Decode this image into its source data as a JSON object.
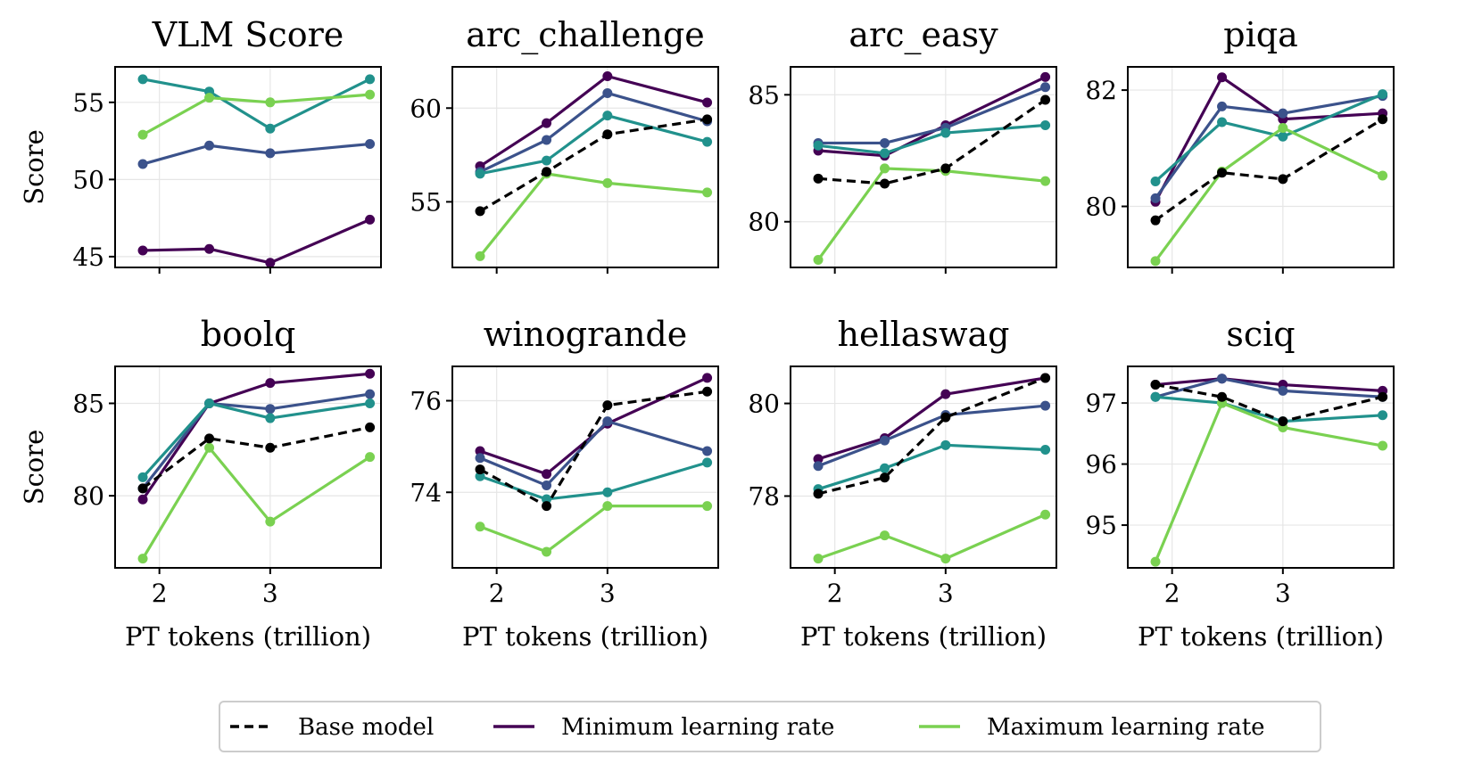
{
  "chart_data": {
    "type": "line",
    "layout": "2x4 grid of line subplots sharing x axis",
    "series_styles": [
      {
        "key": "base",
        "name": "Base model",
        "color": "#000000",
        "dashed": true
      },
      {
        "key": "s1",
        "name": "Minimum learning rate",
        "color": "#440154",
        "dashed": false
      },
      {
        "key": "s2",
        "name": "",
        "color": "#3b528b",
        "dashed": false
      },
      {
        "key": "s3",
        "name": "",
        "color": "#21918c",
        "dashed": false
      },
      {
        "key": "s4",
        "name": "Maximum learning rate",
        "color": "#7ad151",
        "dashed": false
      }
    ],
    "legend": {
      "placement": "bottom-center",
      "entries": [
        {
          "label": "Base model",
          "series": "base"
        },
        {
          "label": "Minimum learning rate",
          "series": "s1"
        },
        {
          "label": "Maximum learning rate",
          "series": "s4"
        }
      ]
    },
    "x": [
      1.85,
      2.45,
      3.0,
      3.9
    ],
    "xlim": [
      1.6,
      4.0
    ],
    "xticks": [
      2,
      3
    ],
    "xlabel": "PT tokens (trillion)",
    "ylabel": "Score",
    "grid": true,
    "panels": [
      {
        "title": "VLM Score",
        "ylim": [
          44.3,
          57.3
        ],
        "yticks": [
          45,
          50,
          55
        ],
        "ylabel": "Score",
        "show_xticklabels": false,
        "series": {
          "s1": [
            45.4,
            45.5,
            44.6,
            47.4
          ],
          "s2": [
            51.0,
            52.2,
            51.7,
            52.3
          ],
          "s3": [
            56.5,
            55.7,
            53.3,
            56.5
          ],
          "s4": [
            52.9,
            55.3,
            55.0,
            55.5
          ]
        }
      },
      {
        "title": "arc_challenge",
        "ylim": [
          51.5,
          62.2
        ],
        "yticks": [
          55,
          60
        ],
        "ylabel": "",
        "show_xticklabels": false,
        "series": {
          "base": [
            54.5,
            56.6,
            58.6,
            59.4
          ],
          "s1": [
            56.9,
            59.2,
            61.7,
            60.3
          ],
          "s2": [
            56.6,
            58.3,
            60.8,
            59.3
          ],
          "s3": [
            56.5,
            57.2,
            59.6,
            58.2
          ],
          "s4": [
            52.1,
            56.5,
            56.0,
            55.5
          ]
        }
      },
      {
        "title": "arc_easy",
        "ylim": [
          78.2,
          86.1
        ],
        "yticks": [
          80,
          85
        ],
        "ylabel": "",
        "show_xticklabels": false,
        "series": {
          "base": [
            81.7,
            81.5,
            82.1,
            84.8
          ],
          "s1": [
            82.8,
            82.6,
            83.8,
            85.7
          ],
          "s2": [
            83.1,
            83.1,
            83.7,
            85.3
          ],
          "s3": [
            83.0,
            82.7,
            83.5,
            83.8
          ],
          "s4": [
            78.5,
            82.1,
            82.0,
            81.6
          ]
        }
      },
      {
        "title": "piqa",
        "ylim": [
          78.95,
          82.4
        ],
        "yticks": [
          80,
          82
        ],
        "ylabel": "",
        "show_xticklabels": false,
        "series": {
          "base": [
            79.76,
            80.58,
            80.47,
            81.5
          ],
          "s1": [
            80.08,
            82.22,
            81.5,
            81.6
          ],
          "s2": [
            80.14,
            81.72,
            81.6,
            81.9
          ],
          "s3": [
            80.43,
            81.45,
            81.2,
            81.93
          ],
          "s4": [
            79.06,
            80.6,
            81.35,
            80.53
          ]
        }
      },
      {
        "title": "boolq",
        "ylim": [
          76.1,
          87.0
        ],
        "yticks": [
          80,
          85
        ],
        "ylabel": "Score",
        "show_xticklabels": true,
        "series": {
          "base": [
            80.4,
            83.1,
            82.6,
            83.7
          ],
          "s1": [
            79.8,
            85.0,
            86.1,
            86.6
          ],
          "s2": [
            80.4,
            85.0,
            84.7,
            85.5
          ],
          "s3": [
            81.0,
            85.0,
            84.2,
            85.0
          ],
          "s4": [
            76.6,
            82.6,
            78.6,
            82.1
          ]
        }
      },
      {
        "title": "winogrande",
        "ylim": [
          72.35,
          76.75
        ],
        "yticks": [
          74,
          76
        ],
        "ylabel": "",
        "show_xticklabels": true,
        "series": {
          "base": [
            74.5,
            73.7,
            75.9,
            76.2
          ],
          "s1": [
            74.9,
            74.4,
            75.5,
            76.5
          ],
          "s2": [
            74.75,
            74.15,
            75.55,
            74.9
          ],
          "s3": [
            74.35,
            73.85,
            74.0,
            74.65
          ],
          "s4": [
            73.25,
            72.7,
            73.7,
            73.7
          ]
        }
      },
      {
        "title": "hellaswag",
        "ylim": [
          76.45,
          80.8
        ],
        "yticks": [
          78,
          80
        ],
        "ylabel": "",
        "show_xticklabels": true,
        "series": {
          "base": [
            78.05,
            78.4,
            79.7,
            80.55
          ],
          "s1": [
            78.8,
            79.25,
            80.2,
            80.55
          ],
          "s2": [
            78.65,
            79.2,
            79.75,
            79.95
          ],
          "s3": [
            78.15,
            78.6,
            79.1,
            79.0
          ],
          "s4": [
            76.65,
            77.15,
            76.65,
            77.6
          ]
        }
      },
      {
        "title": "sciq",
        "ylim": [
          94.3,
          97.6
        ],
        "yticks": [
          95,
          96,
          97
        ],
        "ylabel": "",
        "show_xticklabels": true,
        "series": {
          "base": [
            97.3,
            97.1,
            96.7,
            97.1
          ],
          "s1": [
            97.3,
            97.4,
            97.3,
            97.2
          ],
          "s2": [
            97.1,
            97.4,
            97.2,
            97.1
          ],
          "s3": [
            97.1,
            97.0,
            96.7,
            96.8
          ],
          "s4": [
            94.4,
            97.0,
            96.6,
            96.3
          ]
        }
      }
    ]
  }
}
